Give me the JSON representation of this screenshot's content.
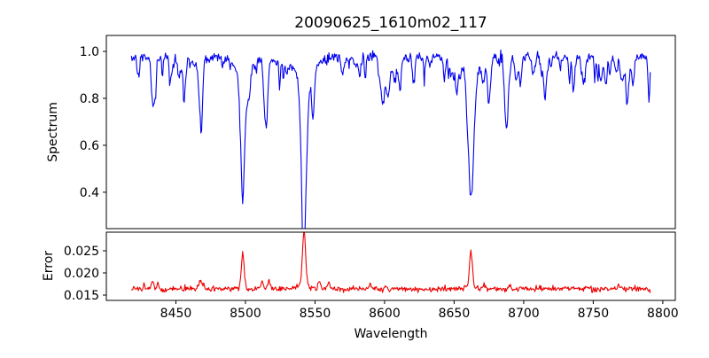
{
  "figure": {
    "title": "20090625_1610m02_117",
    "background": "#ffffff",
    "spine_color": "#000000",
    "tick_color": "#000000"
  },
  "chart_data": [
    {
      "type": "line",
      "id": "spectrum",
      "title": "20090625_1610m02_117",
      "ylabel": "Spectrum",
      "legend": null,
      "grid": false,
      "line_color": "#0000ee",
      "xlim": [
        8400,
        8809
      ],
      "ylim": [
        0.245,
        1.068
      ],
      "yticks": [
        0.4,
        0.6,
        0.8,
        1.0
      ],
      "ytick_labels": [
        "0.4",
        "0.6",
        "0.8",
        "1.0"
      ],
      "x_start": 8418,
      "x_end": 8791,
      "x_step": 0.5,
      "continuum": 0.975,
      "noise_sigma": 0.011,
      "noise_seed": 20090625,
      "weak_lines": {
        "count": 85,
        "depth_min": 0.02,
        "depth_max": 0.12,
        "sigma_min": 0.4,
        "sigma_max": 1.2
      },
      "absorption_lines": [
        {
          "center": 8423,
          "depth": 0.09,
          "sigma": 0.8
        },
        {
          "center": 8434,
          "depth": 0.2,
          "sigma": 1.1
        },
        {
          "center": 8452,
          "depth": 0.08,
          "sigma": 0.8
        },
        {
          "center": 8468,
          "depth": 0.17,
          "sigma": 1.4
        },
        {
          "center": 8498.02,
          "depth": 0.46,
          "sigma": 1.6,
          "wing_depth": 0.07,
          "wing_sigma": 5
        },
        {
          "center": 8515,
          "depth": 0.26,
          "sigma": 1.2
        },
        {
          "center": 8542.09,
          "depth": 0.615,
          "sigma": 1.9,
          "wing_depth": 0.085,
          "wing_sigma": 7
        },
        {
          "center": 8582,
          "depth": 0.08,
          "sigma": 0.9
        },
        {
          "center": 8598,
          "depth": 0.12,
          "sigma": 1.0
        },
        {
          "center": 8611,
          "depth": 0.1,
          "sigma": 0.9
        },
        {
          "center": 8621,
          "depth": 0.11,
          "sigma": 0.9
        },
        {
          "center": 8648,
          "depth": 0.08,
          "sigma": 0.9
        },
        {
          "center": 8662.14,
          "depth": 0.52,
          "sigma": 1.8,
          "wing_depth": 0.08,
          "wing_sigma": 6
        },
        {
          "center": 8675,
          "depth": 0.19,
          "sigma": 1.1
        },
        {
          "center": 8688,
          "depth": 0.22,
          "sigma": 1.2
        },
        {
          "center": 8713,
          "depth": 0.07,
          "sigma": 0.9
        },
        {
          "center": 8736,
          "depth": 0.08,
          "sigma": 1.0
        },
        {
          "center": 8759,
          "depth": 0.12,
          "sigma": 0.9
        },
        {
          "center": 8790,
          "depth": 0.1,
          "sigma": 0.8
        }
      ]
    },
    {
      "type": "line",
      "id": "error",
      "ylabel": "Error",
      "xlabel": "Wavelength",
      "legend": null,
      "grid": false,
      "line_color": "#ee0000",
      "xlim": [
        8400,
        8809
      ],
      "ylim": [
        0.0138,
        0.0292
      ],
      "yticks": [
        0.015,
        0.02,
        0.025
      ],
      "ytick_labels": [
        "0.015",
        "0.020",
        "0.025"
      ],
      "xticks": [
        8450,
        8500,
        8550,
        8600,
        8650,
        8700,
        8750,
        8800
      ],
      "xtick_labels": [
        "8450",
        "8500",
        "8550",
        "8600",
        "8650",
        "8700",
        "8750",
        "8800"
      ],
      "x_start": 8418,
      "x_end": 8791,
      "x_step": 0.5,
      "baseline": 0.0164,
      "noise_sigma": 0.0003,
      "noise_seed": 1610,
      "bumps": [
        {
          "center": 8427,
          "amp": 0.0012,
          "sigma": 0.5
        },
        {
          "center": 8433,
          "amp": 0.0018,
          "sigma": 0.8
        },
        {
          "center": 8437,
          "amp": 0.0016,
          "sigma": 0.6
        },
        {
          "center": 8468,
          "amp": 0.0018,
          "sigma": 1.4
        },
        {
          "center": 8498.02,
          "amp": 0.008,
          "sigma": 1.0
        },
        {
          "center": 8512,
          "amp": 0.0014,
          "sigma": 0.8
        },
        {
          "center": 8517,
          "amp": 0.002,
          "sigma": 0.8
        },
        {
          "center": 8542.09,
          "amp": 0.0122,
          "sigma": 1.1
        },
        {
          "center": 8542.09,
          "amp": 0.001,
          "sigma": 4.0
        },
        {
          "center": 8553,
          "amp": 0.0018,
          "sigma": 0.8
        },
        {
          "center": 8560,
          "amp": 0.0012,
          "sigma": 0.7
        },
        {
          "center": 8590,
          "amp": 0.001,
          "sigma": 1.0
        },
        {
          "center": 8662.14,
          "amp": 0.0077,
          "sigma": 1.0
        },
        {
          "center": 8662.14,
          "amp": 0.0008,
          "sigma": 3.0
        },
        {
          "center": 8672,
          "amp": 0.001,
          "sigma": 0.8
        },
        {
          "center": 8690,
          "amp": 0.0008,
          "sigma": 0.8
        },
        {
          "center": 8768,
          "amp": 0.0013,
          "sigma": 0.5
        },
        {
          "center": 8777,
          "amp": 0.0008,
          "sigma": 0.6
        },
        {
          "center": 8791,
          "amp": -0.0008,
          "sigma": 0.8
        }
      ]
    }
  ],
  "layout_note": "top panel: blue spectrum; bottom panel: red error; Ca II triplet absorption at 8498/8542/8662"
}
